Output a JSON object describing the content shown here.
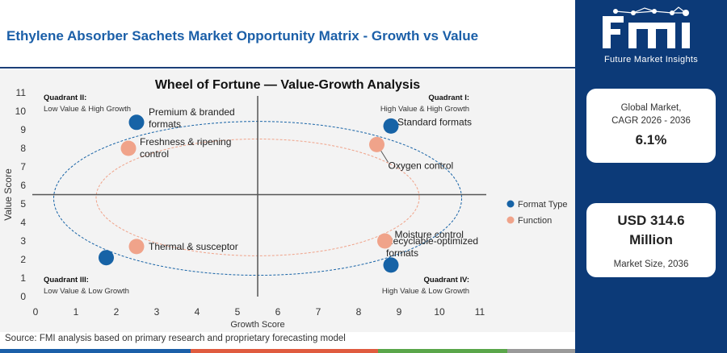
{
  "header": {
    "title": "Ethylene Absorber Sachets Market Opportunity Matrix - Growth vs Value"
  },
  "colors": {
    "title": "#1b5fa8",
    "format_type": "#1763a6",
    "function": "#f0a38a",
    "sidebar": "#0c3a78",
    "quadrant_lines": "#555555",
    "strip": [
      "#1b5fa8",
      "#e05b3f",
      "#5aa64a",
      "#9a9a9a"
    ]
  },
  "sidebar": {
    "logo_text": "Future Market Insights",
    "cagr_label": [
      "Global Market,",
      "CAGR 2026 - 2036"
    ],
    "cagr_value": "6.1%",
    "size_value": [
      "USD 314.6",
      "Million"
    ],
    "size_label": "Market Size, 2036"
  },
  "footer": {
    "source": "Source: FMI analysis based on primary research and proprietary forecasting model"
  },
  "chart_data": {
    "type": "scatter",
    "title": "Wheel of Fortune — Value-Growth Analysis",
    "xlabel": "Growth Score",
    "ylabel": "Value Score",
    "xlim": [
      0,
      11
    ],
    "ylim": [
      0,
      11
    ],
    "xticks": [
      0,
      1,
      2,
      3,
      4,
      5,
      6,
      7,
      8,
      9,
      10,
      11
    ],
    "yticks": [
      0,
      1,
      2,
      3,
      4,
      5,
      6,
      7,
      8,
      9,
      10,
      11
    ],
    "grid": false,
    "divider": {
      "x": 5.5,
      "y": 5.5
    },
    "legend_position": "right",
    "quadrants": [
      {
        "name": "Quadrant II:",
        "desc": "Low Value & High Growth",
        "corner": "top-left"
      },
      {
        "name": "Quadrant I:",
        "desc": "High Value & High Growth",
        "corner": "top-right"
      },
      {
        "name": "Quadrant III:",
        "desc": "Low Value & Low Growth",
        "corner": "bottom-left"
      },
      {
        "name": "Quadrant IV:",
        "desc": "High Value & Low Growth",
        "corner": "bottom-right"
      }
    ],
    "ellipses": [
      {
        "series": "Format Type",
        "cx": 5.5,
        "cy": 5.3,
        "rx": 5.05,
        "ry": 4.15
      },
      {
        "series": "Function",
        "cx": 5.5,
        "cy": 5.35,
        "rx": 4.0,
        "ry": 3.15
      }
    ],
    "series": [
      {
        "name": "Format Type",
        "points": [
          {
            "x": 2.5,
            "y": 9.4,
            "label": [
              "Premium & branded",
              "formats"
            ]
          },
          {
            "x": 8.8,
            "y": 9.2,
            "label": [
              "Standard formats"
            ]
          },
          {
            "x": 1.75,
            "y": 2.1,
            "label": []
          },
          {
            "x": 8.8,
            "y": 1.7,
            "label": [
              "Recyclable-optimized",
              "formats"
            ]
          }
        ]
      },
      {
        "name": "Function",
        "points": [
          {
            "x": 2.3,
            "y": 8.0,
            "label": [
              "Freshness & ripening",
              "control"
            ]
          },
          {
            "x": 8.45,
            "y": 8.2,
            "label": [
              "Oxygen control"
            ]
          },
          {
            "x": 2.5,
            "y": 2.7,
            "label": [
              "Thermal & susceptor"
            ]
          },
          {
            "x": 8.65,
            "y": 3.0,
            "label": [
              "Moisture control"
            ]
          }
        ]
      }
    ]
  }
}
